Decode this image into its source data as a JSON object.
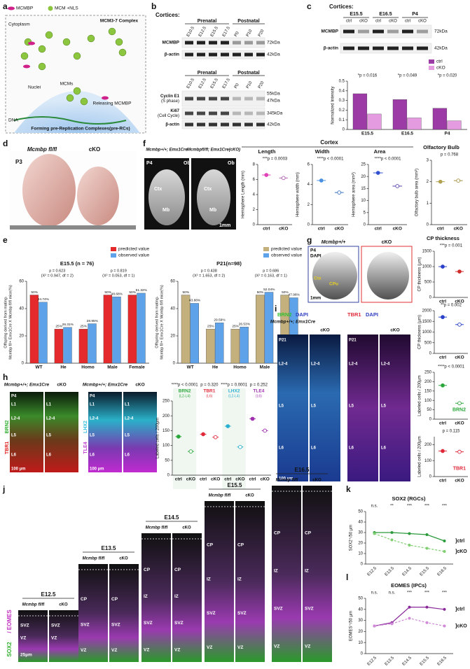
{
  "panel_labels": [
    "a",
    "b",
    "c",
    "d",
    "e",
    "f",
    "g",
    "h",
    "i",
    "j",
    "k",
    "l"
  ],
  "a": {
    "legend": [
      "MCMBP",
      "MCM +NLS"
    ],
    "texts": [
      "Cytoplasm",
      "MCM3-7 Complex",
      "Nuclei",
      "MCMs",
      "Releasing MCMBP",
      "DNA",
      "Forming pre-Replication Complexes(pre-RCs)"
    ]
  },
  "b": {
    "heading": "Cortices:",
    "groups": [
      "Prenatal",
      "Postnatal"
    ],
    "lanes": [
      "E10.5",
      "E12.5",
      "E15.5",
      "E17.5",
      "P0",
      "P10",
      "P20"
    ],
    "top_rows": [
      "MCMBP",
      "β-actin"
    ],
    "top_sizes": [
      "72kDa",
      "42kDa"
    ],
    "bottom_rows": [
      [
        "Cyclin E1",
        "(S phase)"
      ],
      [
        "Ki67",
        "(Cell Cycle)"
      ],
      [
        "β-actin"
      ]
    ],
    "bottom_sizes": [
      "55kDa",
      "47kDa",
      "345kDa",
      "42kDa"
    ]
  },
  "c": {
    "heading": "Cortices:",
    "groups": [
      "E15.5",
      "E16.5",
      "P4"
    ],
    "lanes": [
      "ctrl",
      "cKO",
      "ctrl",
      "cKO",
      "ctrl",
      "cKO"
    ],
    "rows": [
      "MCMBP",
      "β-actin"
    ],
    "sizes": [
      "72kDa",
      "42kDa"
    ],
    "chart": {
      "type": "bar",
      "ylabel": "Normalized Intensity",
      "categories": [
        "E15.5",
        "E16.5",
        "P4"
      ],
      "series": [
        {
          "name": "ctrl",
          "color": "#9c3ba6",
          "values": [
            0.37,
            0.31,
            0.22
          ]
        },
        {
          "name": "cKO",
          "color": "#e59be0",
          "values": [
            0.16,
            0.12,
            0.09
          ]
        }
      ],
      "ylim": [
        0,
        0.5
      ],
      "yticks": [
        0,
        0.1,
        0.2,
        0.3,
        0.4,
        0.5
      ],
      "legend": true,
      "annotations": [
        "*p = 0.016",
        "*p = 0.049",
        "*p = 0.020"
      ]
    }
  },
  "d": {
    "genotype": "Mcmbp fl/fl",
    "cko": "cKO",
    "age": "P3"
  },
  "e": {
    "charts": [
      {
        "type": "bar",
        "title": "E15.5 (n = 76)",
        "ylabel": [
          "Offspring derived from mating-",
          "Mcmbp fl/+ Emx1Cre X Mcmbp fl/fl mice(%)"
        ],
        "categories": [
          "WT",
          "He",
          "Homo",
          "Male",
          "Female"
        ],
        "legend": true,
        "series": [
          {
            "name": "predicted value",
            "color": "#e42a2c",
            "values": [
              50,
              25,
              25,
              50,
              50
            ],
            "value_labels": [
              "50%",
              "25%",
              "25%",
              "50%",
              "50%"
            ]
          },
          {
            "name": "observed value",
            "color": "#5ea3ea",
            "values": [
              44.74,
              26.31,
              28.95,
              48.68,
              51.32
            ],
            "value_labels": [
              "44.74%",
              "26.31%",
              "28.95%",
              "48.68%",
              "51.32%"
            ]
          }
        ],
        "ylim": [
          0,
          60
        ],
        "yticks": [
          0,
          20,
          40,
          60
        ],
        "annotations": [
          [
            "p = 0.623",
            "(X² = 0.947, df = 2)"
          ],
          [
            "p = 0.819",
            "(X² = 0.053, df = 1)"
          ]
        ]
      },
      {
        "type": "bar",
        "title": "P21(n=98)",
        "ylabel": [
          "Offspring derived from mating-",
          "Mcmbp fl/+ Emx1Cre X Mcmbp fl/fl mice(%)"
        ],
        "categories": [
          "WT",
          "He",
          "Homo",
          "Male",
          "Female"
        ],
        "legend": true,
        "series": [
          {
            "name": "predicted value",
            "color": "#c4b07c",
            "values": [
              50,
              25,
              25,
              50,
              50
            ],
            "value_labels": [
              "50%",
              "25%",
              "25%",
              "50%",
              "50%"
            ]
          },
          {
            "name": "observed value",
            "color": "#5ea3ea",
            "values": [
              43.88,
              29.59,
              26.53,
              52.04,
              47.96
            ],
            "value_labels": [
              "43.88%",
              "29.59%",
              "26.53%",
              "52.04%",
              "47.96%"
            ]
          }
        ],
        "ylim": [
          0,
          60
        ],
        "yticks": [
          0,
          20,
          40,
          60
        ],
        "annotations": [
          [
            "p = 0.438",
            "(X² = 1.653, df = 2)"
          ],
          [
            "p = 0.686",
            "(X² = 0.163, df = 1)"
          ]
        ]
      }
    ]
  },
  "f": {
    "images": [
      {
        "genotype": "Mcmbp+/+; Emx1Cre",
        "labels": [
          "P4",
          "Ob",
          "Ctx",
          "Mb"
        ]
      },
      {
        "genotype": "Mcmbpfl/fl; Emx1Cre(cKO)",
        "labels": [
          "Ob",
          "Ctx",
          "Mb",
          "1mm"
        ]
      }
    ],
    "heading": "Cortex",
    "charts": [
      {
        "type": "dot",
        "title": "Length",
        "ylabel": "Hemisphere Length (mm)",
        "categories": [
          "ctrl",
          "cKO"
        ],
        "values": [
          6.6,
          6.2
        ],
        "colors": [
          "#e040b8",
          "#b05ab0"
        ],
        "open": [
          false,
          true
        ],
        "ylim": [
          0,
          8
        ],
        "yticks": [
          0,
          2,
          4,
          6,
          8
        ],
        "annotations": [
          "***p = 0.0003"
        ]
      },
      {
        "type": "dot",
        "title": "Width",
        "ylabel": "Hemisphere width (mm)",
        "categories": [
          "ctrl",
          "cKO"
        ],
        "values": [
          4.4,
          3.2
        ],
        "colors": [
          "#4a90e2",
          "#3a6fc0"
        ],
        "open": [
          false,
          true
        ],
        "ylim": [
          0,
          6
        ],
        "yticks": [
          0,
          2,
          4,
          6
        ],
        "annotations": [
          "****p < 0.0001"
        ]
      },
      {
        "type": "dot",
        "title": "Area",
        "ylabel": "Hemisphere area (mm²)",
        "categories": [
          "ctrl",
          "cKO"
        ],
        "values": [
          21.5,
          16
        ],
        "colors": [
          "#3050d0",
          "#5a40b0"
        ],
        "open": [
          false,
          true
        ],
        "ylim": [
          0,
          25
        ],
        "yticks": [
          0,
          5,
          10,
          15,
          20,
          25
        ],
        "annotations": [
          "****p < 0.0001"
        ]
      },
      {
        "type": "dot",
        "title": "Olfactory Bulb",
        "ylabel": "Olfactory bulb area (mm²)",
        "categories": [
          "ctrl",
          "cKO"
        ],
        "values": [
          2.0,
          2.05
        ],
        "colors": [
          "#b0a050",
          "#a09040"
        ],
        "open": [
          false,
          true
        ],
        "ylim": [
          0,
          3
        ],
        "yticks": [
          0,
          1,
          2,
          3
        ],
        "annotations": [
          "p = 0.768"
        ]
      }
    ]
  },
  "g": {
    "images": [
      {
        "genotype": "Mcmbp+/+",
        "labels": [
          "P4",
          "DAPI",
          "Ctx",
          "CPu",
          "1mm"
        ]
      },
      {
        "genotype": "cKO",
        "labels": []
      }
    ],
    "chart": {
      "type": "dot",
      "title": "CP thickness",
      "ylabel": "CP thickness (µm)",
      "categories": [
        "ctrl",
        "cKO"
      ],
      "values": [
        1000,
        840
      ],
      "colors": [
        "#2a40c8",
        "#d02a2a"
      ],
      "open": [
        false,
        false
      ],
      "ylim": [
        0,
        1500
      ],
      "yticks": [
        0,
        500,
        1000,
        1500
      ],
      "annotations": [
        "***p = 0.001"
      ]
    }
  },
  "h": {
    "images": [
      {
        "genotype": "Mcmbp+/+; Emx1Cre",
        "stain": [
          "TBR1",
          "BRN2"
        ],
        "labels": [
          "P4",
          "L1",
          "L2-4",
          "L5",
          "L6",
          "100 µm"
        ]
      },
      {
        "genotype": "cKO",
        "stain": [],
        "labels": [
          "L1",
          "L2-4",
          "L5",
          "L6"
        ]
      },
      {
        "genotype": "Mcmbp+/+; Emx1Cre",
        "stain": [
          "TLE4",
          "LHX2"
        ],
        "labels": [
          "P4",
          "L1",
          "L2-4",
          "L5",
          "L6",
          "100 µm"
        ]
      },
      {
        "genotype": "cKO",
        "stain": [],
        "labels": [
          "L1",
          "L2-4",
          "L5",
          "L6"
        ]
      }
    ],
    "chart": {
      "type": "dot",
      "ylabel": "Labeled cells / 200µm",
      "groups": [
        "BRN2",
        "TBR1",
        "LHX2",
        "TLE4"
      ],
      "group_sub": [
        "(L2-L4)",
        "(L6)",
        "(L2-L4)",
        "(L6)"
      ],
      "categories": [
        "ctrl",
        "cKO",
        "ctrl",
        "cKO",
        "ctrl",
        "cKO",
        "ctrl",
        "cKO"
      ],
      "values": [
        130,
        80,
        138,
        128,
        165,
        95,
        190,
        150
      ],
      "colors": [
        "#2aa63a",
        "#2aa63a",
        "#e02a3a",
        "#e02a3a",
        "#2ab0d0",
        "#2ab0d0",
        "#a030b0",
        "#a030b0"
      ],
      "open": [
        false,
        true,
        false,
        true,
        false,
        true,
        false,
        true
      ],
      "ylim": [
        0,
        250
      ],
      "yticks": [
        0,
        50,
        100,
        150,
        200,
        250
      ],
      "annotations": [
        "****p < 0.0001",
        "p = 0.320",
        "****p = 0.0001",
        "p = 0.252"
      ]
    }
  },
  "i": {
    "images": [
      {
        "genotype": "Mcmbp+/+; Emx1Cre",
        "stain": [
          "BRN2",
          "DAPI"
        ],
        "labels": [
          "P21",
          "L2-4",
          "L5",
          "L6",
          "100 µm"
        ]
      },
      {
        "genotype": "cKO",
        "stain": [],
        "labels": [
          "L2-4",
          "L5",
          "L6"
        ]
      },
      {
        "genotype": "",
        "stain": [
          "TBR1",
          "DAPI"
        ],
        "labels": [
          "P21",
          "L2-4",
          "L5",
          "L6"
        ]
      },
      {
        "genotype": "cKO",
        "stain": [],
        "labels": [
          "L2-4",
          "L5",
          "L6"
        ]
      }
    ],
    "charts": [
      {
        "type": "dot",
        "ylabel": "CP thickness (µm)",
        "categories": [
          "ctrl",
          "cKO"
        ],
        "values": [
          1700,
          1350
        ],
        "colors": [
          "#2a40c8",
          "#2a40c8"
        ],
        "open": [
          false,
          true
        ],
        "ylim": [
          0,
          2000
        ],
        "yticks": [
          0,
          500,
          1000,
          1500,
          2000
        ],
        "annotations": [
          "**p = 0.002"
        ]
      },
      {
        "type": "dot",
        "ylabel": "Labeled cells / 200µm",
        "categories": [
          "ctrl",
          "cKO"
        ],
        "values": [
          180,
          85
        ],
        "colors": [
          "#2aa63a",
          "#2aa63a"
        ],
        "open": [
          false,
          true
        ],
        "ylim": [
          0,
          250
        ],
        "yticks": [
          0,
          50,
          100,
          150,
          200,
          250
        ],
        "annotations": [
          "****p < 0.0001"
        ],
        "inner_label": "BRN2"
      },
      {
        "type": "dot",
        "ylabel": "Labeled cells / 200µm",
        "categories": [
          "ctrl",
          "cKO"
        ],
        "values": [
          160,
          155
        ],
        "colors": [
          "#e02a3a",
          "#e02a3a"
        ],
        "open": [
          false,
          true
        ],
        "ylim": [
          0,
          250
        ],
        "yticks": [
          0,
          100,
          200
        ],
        "annotations": [
          "p = 0.115"
        ],
        "inner_label": "TBR1"
      }
    ]
  },
  "j": {
    "stain": [
      "SOX2",
      "/ EOMES"
    ],
    "genotype": "Mcmbp fl/fl",
    "cko": "cKO",
    "stages": [
      {
        "age": "E12.5",
        "labels": [
          "SVZ",
          "VZ",
          "25µm"
        ]
      },
      {
        "age": "E13.5",
        "labels": [
          "CP",
          "SVZ",
          "VZ"
        ]
      },
      {
        "age": "E14.5",
        "labels": [
          "CP",
          "IZ",
          "SVZ",
          "VZ"
        ]
      },
      {
        "age": "E15.5",
        "labels": [
          "CP",
          "IZ",
          "SVZ",
          "VZ"
        ]
      },
      {
        "age": "E16.5",
        "labels": [
          "CP",
          "IZ",
          "SVZ",
          "VZ"
        ]
      }
    ]
  },
  "k": {
    "type": "line",
    "title": "SOX2 (RGCs)",
    "ylabel": "SOX2⁺/50 µm",
    "categories": [
      "E12.5",
      "E13.5",
      "E14.5",
      "E15.5",
      "E16.5"
    ],
    "rotate": true,
    "series": [
      {
        "name": "]ctrl",
        "color": "#2a9a3a",
        "values": [
          30,
          30,
          29,
          28,
          22
        ]
      },
      {
        "name": "]cKO",
        "color": "#7fcf70",
        "values": [
          29,
          23,
          18,
          15,
          12
        ],
        "dash": true
      }
    ],
    "ylim": [
      0,
      50
    ],
    "yticks": [
      0,
      10,
      20,
      30,
      40,
      50
    ],
    "annotations": [
      "n.s.",
      "**",
      "***",
      "***",
      "***"
    ]
  },
  "l": {
    "type": "line",
    "title": "EOMES (IPCs)",
    "ylabel": "EOMES⁺/50 µm",
    "categories": [
      "E12.5",
      "E13.5",
      "E14.5",
      "E15.5",
      "E16.5"
    ],
    "rotate": true,
    "series": [
      {
        "name": "]ctrl",
        "color": "#8a2a9a",
        "values": [
          25,
          28,
          42,
          42,
          40
        ]
      },
      {
        "name": "]cKO",
        "color": "#d08ad8",
        "values": [
          25,
          27,
          32,
          28,
          25
        ],
        "dash": true
      }
    ],
    "ylim": [
      0,
      50
    ],
    "yticks": [
      0,
      10,
      20,
      30,
      40,
      50
    ],
    "annotations": [
      "n.s.",
      "n.s.",
      "***",
      "***",
      "***"
    ]
  }
}
